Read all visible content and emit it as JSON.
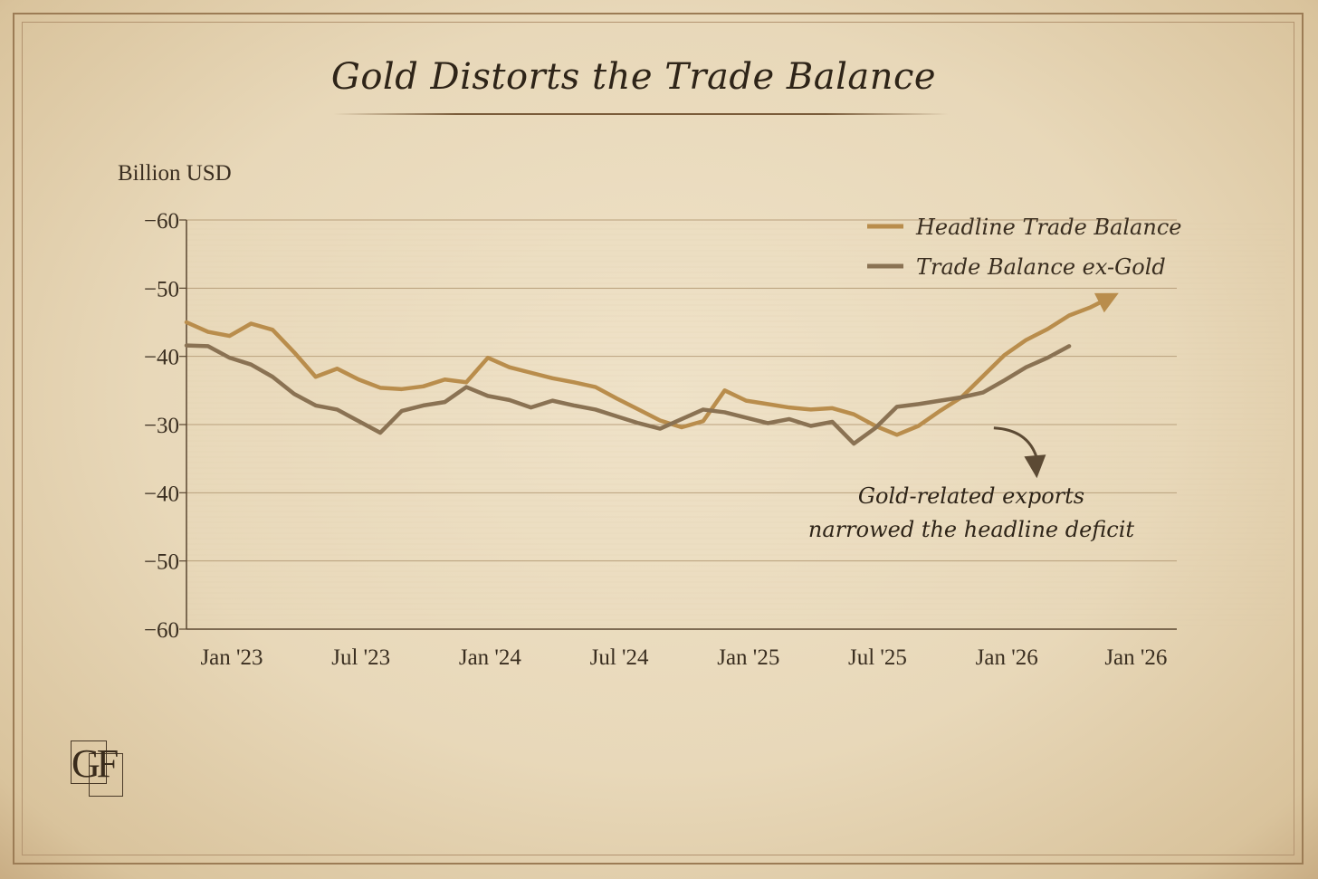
{
  "title": "Gold Distorts the Trade Balance",
  "logo_text": "GF",
  "colors": {
    "headline": "#b98d4c",
    "ex_gold": "#8a7253",
    "text": "#3a2e20",
    "grid": "#c8b494"
  },
  "chart_data": {
    "type": "line",
    "title": "Gold Distorts the Trade Balance",
    "ylabel": "Billion USD",
    "xlabel": "",
    "y_tick_labels": [
      "−60",
      "−50",
      "−40",
      "−30",
      "−40",
      "−50",
      "−60"
    ],
    "x_tick_labels": [
      "Jan '23",
      "Jul '23",
      "Jan '24",
      "Jul '24",
      "Jan '25",
      "Jul '25",
      "Jan '26",
      "Jan '26"
    ],
    "ylim": [
      0,
      6
    ],
    "xlim": [
      0,
      46
    ],
    "grid": "horizontal",
    "legend_position": "top-right",
    "series": [
      {
        "name": "Headline Trade Balance",
        "color": "#b98d4c",
        "arrow_end": true,
        "x": [
          0,
          1,
          2,
          3,
          4,
          5,
          6,
          7,
          8,
          9,
          10,
          11,
          12,
          13,
          14,
          15,
          16,
          17,
          18,
          19,
          20,
          21,
          22,
          23,
          24,
          25,
          26,
          27,
          28,
          29,
          30,
          31,
          32,
          33,
          34,
          35,
          36,
          37,
          38,
          39,
          40,
          41,
          42,
          43
        ],
        "y": [
          4.5,
          4.36,
          4.3,
          4.48,
          4.39,
          4.06,
          3.7,
          3.82,
          3.66,
          3.54,
          3.52,
          3.56,
          3.66,
          3.62,
          3.98,
          3.84,
          3.76,
          3.68,
          3.62,
          3.55,
          3.38,
          3.22,
          3.06,
          2.96,
          3.05,
          3.5,
          3.35,
          3.3,
          3.25,
          3.22,
          3.24,
          3.15,
          2.98,
          2.85,
          2.98,
          3.2,
          3.4,
          3.71,
          4.02,
          4.24,
          4.4,
          4.6,
          4.72,
          4.88
        ]
      },
      {
        "name": "Trade Balance ex-Gold",
        "color": "#8a7253",
        "x": [
          0,
          1,
          2,
          3,
          4,
          5,
          6,
          7,
          8,
          9,
          10,
          11,
          12,
          13,
          14,
          15,
          16,
          17,
          18,
          19,
          20,
          21,
          22,
          23,
          24,
          25,
          26,
          27,
          28,
          29,
          30,
          31,
          32,
          33,
          34,
          35,
          36,
          37,
          38,
          39,
          40,
          41
        ],
        "y": [
          4.16,
          4.15,
          3.98,
          3.88,
          3.7,
          3.45,
          3.28,
          3.22,
          3.05,
          2.88,
          3.2,
          3.28,
          3.33,
          3.55,
          3.42,
          3.36,
          3.25,
          3.35,
          3.28,
          3.22,
          3.12,
          3.02,
          2.94,
          3.08,
          3.22,
          3.18,
          3.1,
          3.02,
          3.08,
          2.98,
          3.04,
          2.72,
          2.95,
          3.26,
          3.3,
          3.35,
          3.4,
          3.47,
          3.65,
          3.84,
          3.98,
          4.15
        ]
      }
    ],
    "annotations": [
      {
        "text_lines": [
          "Gold-related exports",
          "narrowed the headline deficit"
        ],
        "arrow_from_x": 37.5,
        "arrow_from_y": 2.95,
        "arrow_to_x": 39.5,
        "arrow_to_y": 2.32
      }
    ]
  }
}
